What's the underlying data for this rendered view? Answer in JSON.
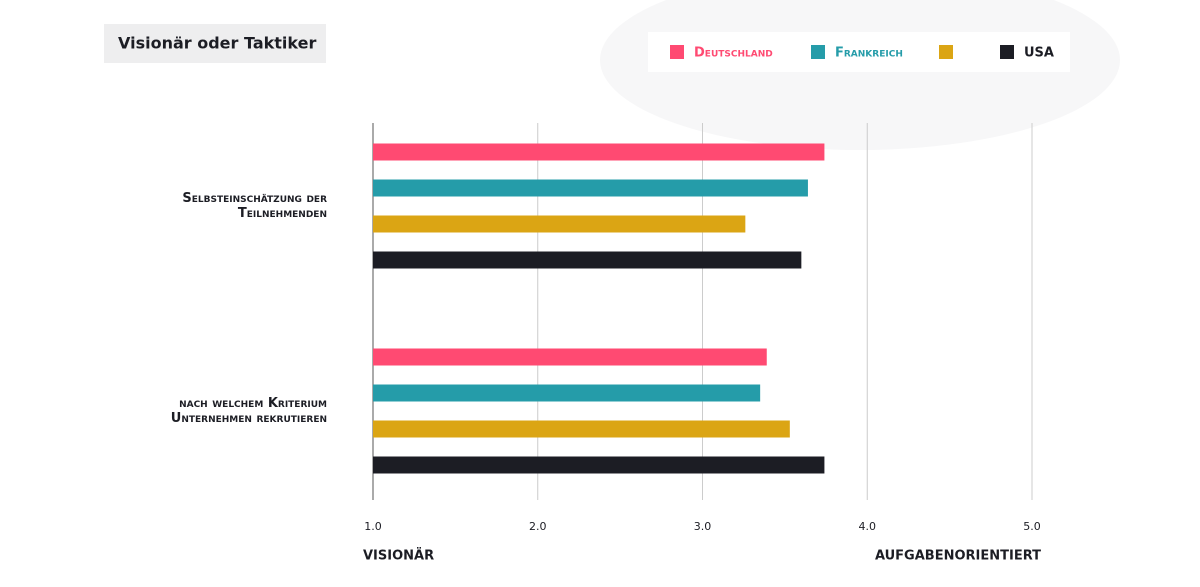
{
  "chart_data": {
    "type": "barh",
    "title": "Visionär oder Taktiker",
    "categories": [
      "Selbsteinschätzung der Teilnehmenden",
      "nach welchem Kriterium Unternehmen rekrutieren"
    ],
    "series": [
      {
        "name": "Deutschland",
        "color": "#ff4a72",
        "values": [
          3.74,
          3.39
        ]
      },
      {
        "name": "Frankreich",
        "color": "#259ca9",
        "values": [
          3.64,
          3.35
        ]
      },
      {
        "name": null,
        "color": "#dba514",
        "values": [
          3.26,
          3.53
        ]
      },
      {
        "name": "USA",
        "color": "#1c1d24",
        "values": [
          3.6,
          3.74
        ]
      }
    ],
    "xlim": [
      1,
      5
    ],
    "xticks": [
      {
        "value": 1,
        "label": "1.0"
      },
      {
        "value": 2,
        "label": "2.0"
      },
      {
        "value": 3,
        "label": "3.0"
      },
      {
        "value": 4,
        "label": "4.0"
      },
      {
        "value": 5,
        "label": "5.0"
      }
    ],
    "x_label_left": "VISIONÄR",
    "x_label_right": "AUFGABENORIENTIERT",
    "grid": true
  }
}
